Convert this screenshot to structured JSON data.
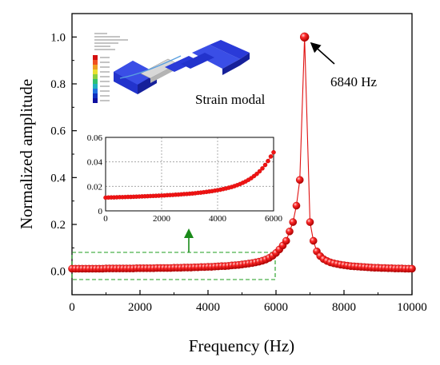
{
  "chart_data": [
    {
      "type": "line",
      "xlabel": "Frequency (Hz)",
      "ylabel": "Normalized amplitude",
      "xlim": [
        0,
        10000
      ],
      "ylim": [
        -0.1,
        1.1
      ],
      "xticks": [
        "0",
        "2000",
        "4000",
        "6000",
        "8000",
        "10000"
      ],
      "yticks": [
        "0.0",
        "0.2",
        "0.4",
        "0.6",
        "0.8",
        "1.0"
      ],
      "xtick_values": [
        0,
        2000,
        4000,
        6000,
        8000,
        10000
      ],
      "ytick_values": [
        0.0,
        0.2,
        0.4,
        0.6,
        0.8,
        1.0
      ],
      "grid": false,
      "marker": "sphere",
      "color": "#e01010",
      "annotations": [
        {
          "text": "6840 Hz",
          "x": 6840,
          "y": 1.0
        },
        {
          "text": "Strain modal"
        }
      ],
      "series": [
        {
          "x": [
            0,
            100,
            200,
            300,
            400,
            500,
            600,
            700,
            800,
            900,
            1000,
            1100,
            1200,
            1300,
            1400,
            1500,
            1600,
            1700,
            1800,
            1900,
            2000,
            2100,
            2200,
            2300,
            2400,
            2500,
            2600,
            2700,
            2800,
            2900,
            3000,
            3100,
            3200,
            3300,
            3400,
            3500,
            3600,
            3700,
            3800,
            3900,
            4000,
            4100,
            4200,
            4300,
            4400,
            4500,
            4600,
            4700,
            4800,
            4900,
            5000,
            5100,
            5200,
            5300,
            5400,
            5500,
            5600,
            5700,
            5800,
            5900,
            6000,
            6100,
            6200,
            6300,
            6400,
            6500,
            6600,
            6700,
            6840,
            7000,
            7100,
            7200,
            7300,
            7400,
            7500,
            7600,
            7700,
            7800,
            7900,
            8000,
            8100,
            8200,
            8300,
            8400,
            8500,
            8600,
            8700,
            8800,
            8900,
            9000,
            9100,
            9200,
            9300,
            9400,
            9500,
            9600,
            9700,
            9800,
            9900,
            10000
          ],
          "values": [
            0.011,
            0.011,
            0.011,
            0.011,
            0.011,
            0.011,
            0.011,
            0.011,
            0.011,
            0.011,
            0.012,
            0.012,
            0.012,
            0.012,
            0.012,
            0.012,
            0.012,
            0.012,
            0.012,
            0.013,
            0.013,
            0.013,
            0.013,
            0.013,
            0.013,
            0.014,
            0.014,
            0.014,
            0.014,
            0.014,
            0.015,
            0.015,
            0.015,
            0.016,
            0.016,
            0.016,
            0.017,
            0.017,
            0.018,
            0.018,
            0.019,
            0.019,
            0.02,
            0.021,
            0.022,
            0.022,
            0.023,
            0.025,
            0.026,
            0.027,
            0.029,
            0.031,
            0.033,
            0.035,
            0.038,
            0.041,
            0.045,
            0.05,
            0.057,
            0.066,
            0.078,
            0.093,
            0.11,
            0.13,
            0.17,
            0.21,
            0.28,
            0.39,
            1.0,
            0.21,
            0.13,
            0.085,
            0.065,
            0.052,
            0.044,
            0.038,
            0.034,
            0.031,
            0.028,
            0.026,
            0.024,
            0.022,
            0.021,
            0.02,
            0.019,
            0.018,
            0.017,
            0.016,
            0.015,
            0.015,
            0.014,
            0.014,
            0.013,
            0.013,
            0.012,
            0.012,
            0.012,
            0.011,
            0.011,
            0.011
          ]
        }
      ]
    },
    {
      "type": "line",
      "xlim": [
        0,
        6000
      ],
      "ylim": [
        0,
        0.06
      ],
      "xticks": [
        "0",
        "2000",
        "4000",
        "6000"
      ],
      "yticks": [
        "0",
        "0.02",
        "0.04",
        "0.06"
      ],
      "xtick_values": [
        0,
        2000,
        4000,
        6000
      ],
      "ytick_values": [
        0,
        0.02,
        0.04,
        0.06
      ],
      "grid": true,
      "marker": "circle",
      "color": "#e01010",
      "series": [
        {
          "x": [
            0,
            100,
            200,
            300,
            400,
            500,
            600,
            700,
            800,
            900,
            1000,
            1100,
            1200,
            1300,
            1400,
            1500,
            1600,
            1700,
            1800,
            1900,
            2000,
            2100,
            2200,
            2300,
            2400,
            2500,
            2600,
            2700,
            2800,
            2900,
            3000,
            3100,
            3200,
            3300,
            3400,
            3500,
            3600,
            3700,
            3800,
            3900,
            4000,
            4100,
            4200,
            4300,
            4400,
            4500,
            4600,
            4700,
            4800,
            4900,
            5000,
            5100,
            5200,
            5300,
            5400,
            5500,
            5600,
            5700,
            5800,
            5900,
            6000
          ],
          "values": [
            0.0108,
            0.0109,
            0.011,
            0.011,
            0.0111,
            0.0112,
            0.0112,
            0.0113,
            0.0114,
            0.0114,
            0.0115,
            0.0116,
            0.0117,
            0.0118,
            0.0119,
            0.012,
            0.0121,
            0.0122,
            0.0123,
            0.0124,
            0.0125,
            0.0126,
            0.0128,
            0.0129,
            0.013,
            0.0132,
            0.0133,
            0.0135,
            0.0137,
            0.0138,
            0.014,
            0.0142,
            0.0144,
            0.0147,
            0.0149,
            0.0152,
            0.0155,
            0.0158,
            0.0161,
            0.0165,
            0.0169,
            0.0173,
            0.0178,
            0.0183,
            0.0189,
            0.0195,
            0.0202,
            0.021,
            0.0219,
            0.0229,
            0.024,
            0.0253,
            0.0267,
            0.0284,
            0.0302,
            0.0323,
            0.0347,
            0.0375,
            0.0407,
            0.0444,
            0.0478
          ]
        }
      ]
    }
  ]
}
